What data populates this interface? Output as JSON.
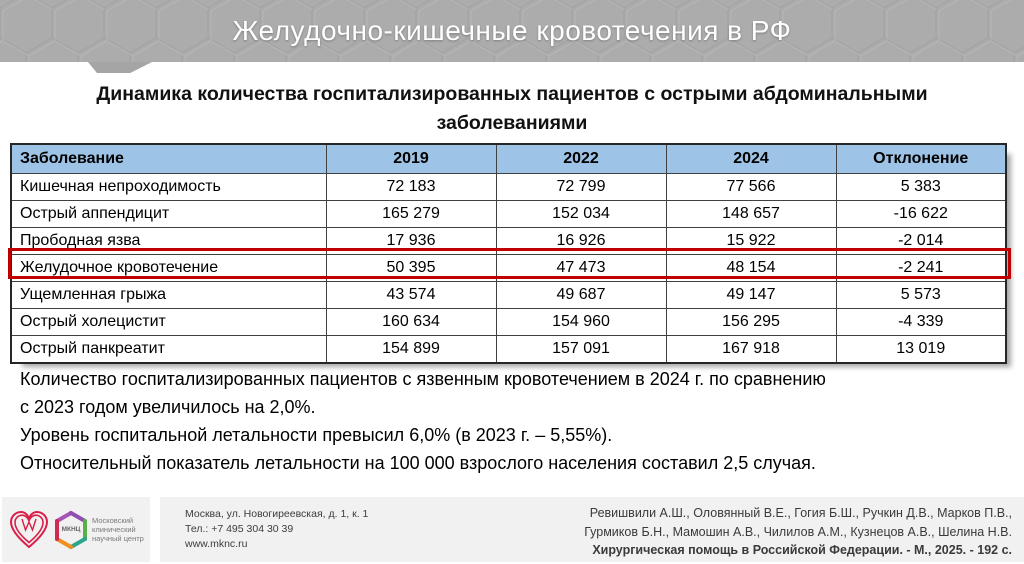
{
  "header": {
    "title": "Желудочно-кишечные кровотечения в РФ"
  },
  "slide_title": "Динамика количества госпитализированных пациентов с острыми абдоминальными заболеваниями",
  "table": {
    "columns": [
      "Заболевание",
      "2019",
      "2022",
      "2024",
      "Отклонение"
    ],
    "header_bg": "#9dc3e6",
    "highlight_color": "#c00000",
    "rows": [
      {
        "disease": "Кишечная непроходимость",
        "values": [
          "72 183",
          "72 799",
          "77 566",
          "5 383"
        ],
        "highlighted": false
      },
      {
        "disease": "Острый аппендицит",
        "values": [
          "165 279",
          "152 034",
          "148 657",
          "-16 622"
        ],
        "highlighted": false
      },
      {
        "disease": "Прободная язва",
        "values": [
          "17 936",
          "16 926",
          "15 922",
          "-2 014"
        ],
        "highlighted": false
      },
      {
        "disease": "Желудочное кровотечение",
        "values": [
          "50 395",
          "47 473",
          "48 154",
          "-2 241"
        ],
        "highlighted": true
      },
      {
        "disease": "Ущемленная грыжа",
        "values": [
          "43 574",
          "49 687",
          "49 147",
          "5 573"
        ],
        "highlighted": false
      },
      {
        "disease": "Острый холецистит",
        "values": [
          "160 634",
          "154 960",
          "156 295",
          "-4 339"
        ],
        "highlighted": false
      },
      {
        "disease": "Острый панкреатит",
        "values": [
          "154 899",
          "157 091",
          "167 918",
          "13 019"
        ],
        "highlighted": false
      }
    ]
  },
  "body_text": {
    "lines": [
      "Количество госпитализированных пациентов с язвенным кровотечением в 2024 г. по сравнению",
      "с 2023 годом увеличилось на 2,0%.",
      "Уровень госпитальной летальности превысил 6,0% (в 2023 г. – 5,55%).",
      "Относительный показатель летальности на 100 000 взрослого населения составил 2,5 случая."
    ]
  },
  "footer": {
    "logo": {
      "hex_label": "МКНЦ",
      "org_name_lines": [
        "Московский",
        "клинический",
        "научный центр"
      ]
    },
    "contact": {
      "address": "Москва, ул. Новогиреевская, д. 1, к. 1",
      "phone": "Тел.: +7 495 304 30 39",
      "website": "www.mknc.ru"
    },
    "citation": {
      "authors_line1": "Ревишвили А.Ш., Оловянный В.Е., Гогия Б.Ш., Ручкин Д.В., Марков П.В.,",
      "authors_line2": "Гурмиков Б.Н., Мамошин А.В., Чилилов А.М., Кузнецов А.В., Шелина Н.В.",
      "source": "Хирургическая помощь в Российской Федерации. - М., 2025. - 192 с."
    }
  },
  "colors": {
    "header_bar": "#acacac",
    "table_header": "#9dc3e6",
    "highlight": "#c00000",
    "footer_block": "#f1f1f1",
    "logo_heart": "#d91e49"
  }
}
